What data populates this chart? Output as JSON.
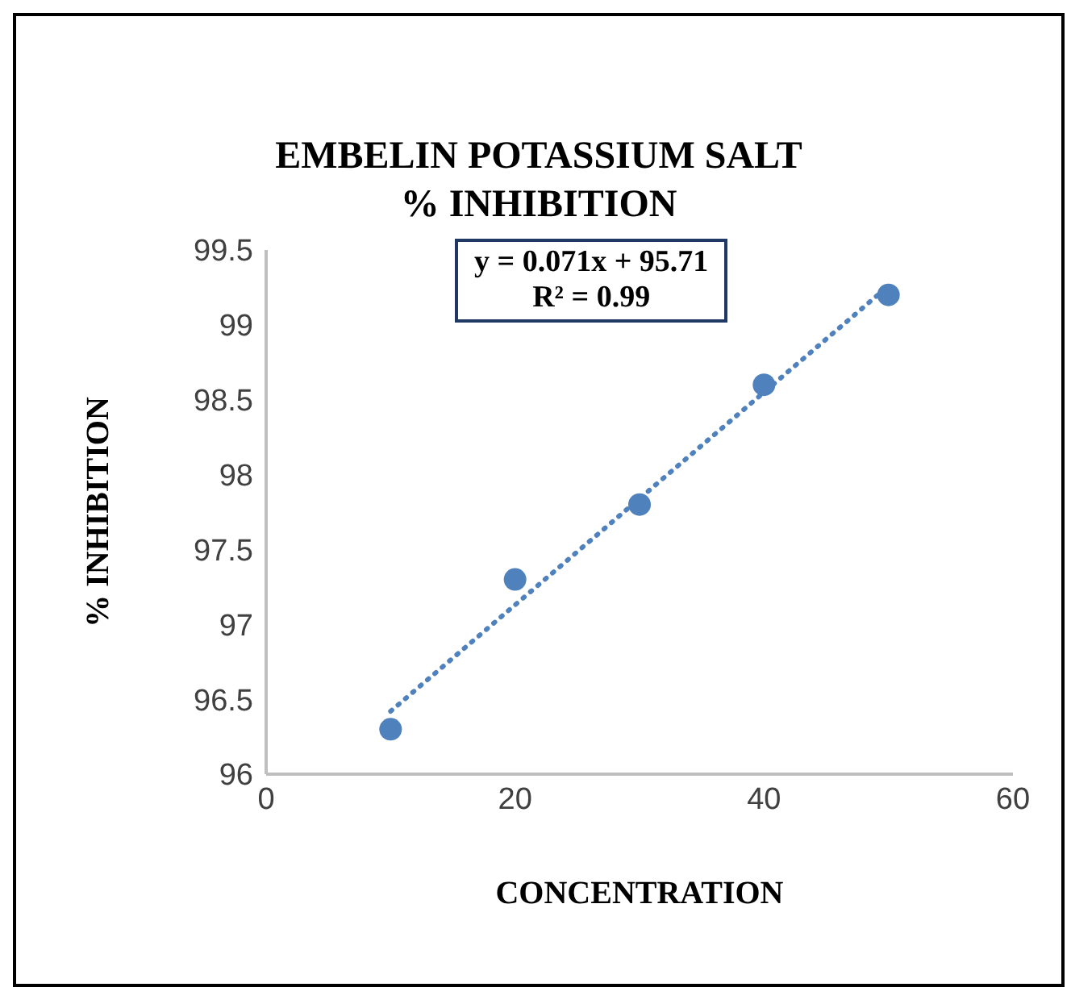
{
  "chart_data": {
    "type": "scatter",
    "title": "EMBELIN POTASSIUM SALT\n% INHIBITION",
    "xlabel": "CONCENTRATION",
    "ylabel": "% INHIBITION",
    "annotations": [
      "y = 0.071x + 95.71",
      "R² = 0.99"
    ],
    "series": [
      {
        "color": "#4f81bd",
        "x": [
          10,
          20,
          30,
          40,
          50
        ],
        "values": [
          96.3,
          97.3,
          97.8,
          98.6,
          99.2
        ],
        "marker": "circle"
      },
      {
        "type": "line",
        "color": "#4f81bd",
        "x": [
          10,
          50
        ],
        "values": [
          96.42,
          99.26
        ],
        "line_style": "dotted",
        "marker": "none"
      }
    ],
    "xlim": [
      0,
      60
    ],
    "xticks": [
      0,
      20,
      40,
      60
    ],
    "ylim": [
      96,
      99.5
    ],
    "yticks": [
      96,
      96.5,
      97,
      97.5,
      98,
      98.5,
      99,
      99.5
    ],
    "grid": false,
    "legend": false
  }
}
